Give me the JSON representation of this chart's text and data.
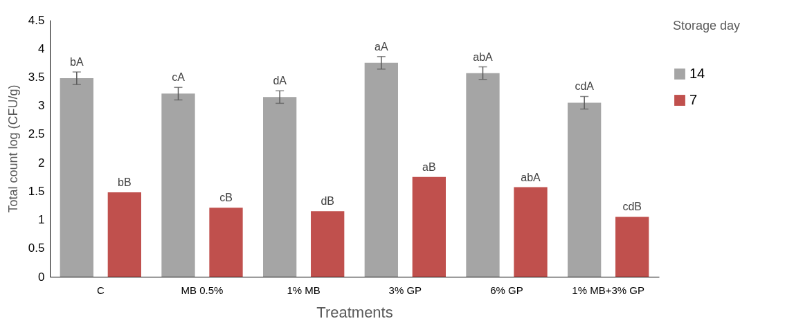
{
  "chart_data": {
    "type": "bar",
    "xlabel": "Treatments",
    "ylabel": "Total count log (CFU/g)",
    "legend_title": "Storage day",
    "legend": "right",
    "categories": [
      "C",
      "MB 0.5%",
      "1% MB",
      "3% GP",
      "6% GP",
      "1% MB+3% GP"
    ],
    "ylim": [
      0,
      4.5
    ],
    "yticks": [
      0,
      0.5,
      1,
      1.5,
      2,
      2.5,
      3,
      3.5,
      4,
      4.5
    ],
    "series": [
      {
        "name": "14",
        "color": "#a5a5a5",
        "values": [
          3.48,
          3.21,
          3.15,
          3.75,
          3.57,
          3.05
        ],
        "errors": [
          0.11,
          0.11,
          0.11,
          0.11,
          0.11,
          0.11
        ],
        "value_labels": [
          "bA",
          "cA",
          "dA",
          "aA",
          "abA",
          "cdA"
        ]
      },
      {
        "name": "7",
        "color": "#c0504d",
        "values": [
          1.48,
          1.21,
          1.15,
          1.75,
          1.57,
          1.05
        ],
        "value_labels": [
          "bB",
          "cB",
          "dB",
          "aB",
          "abA",
          "cdB"
        ]
      }
    ]
  }
}
